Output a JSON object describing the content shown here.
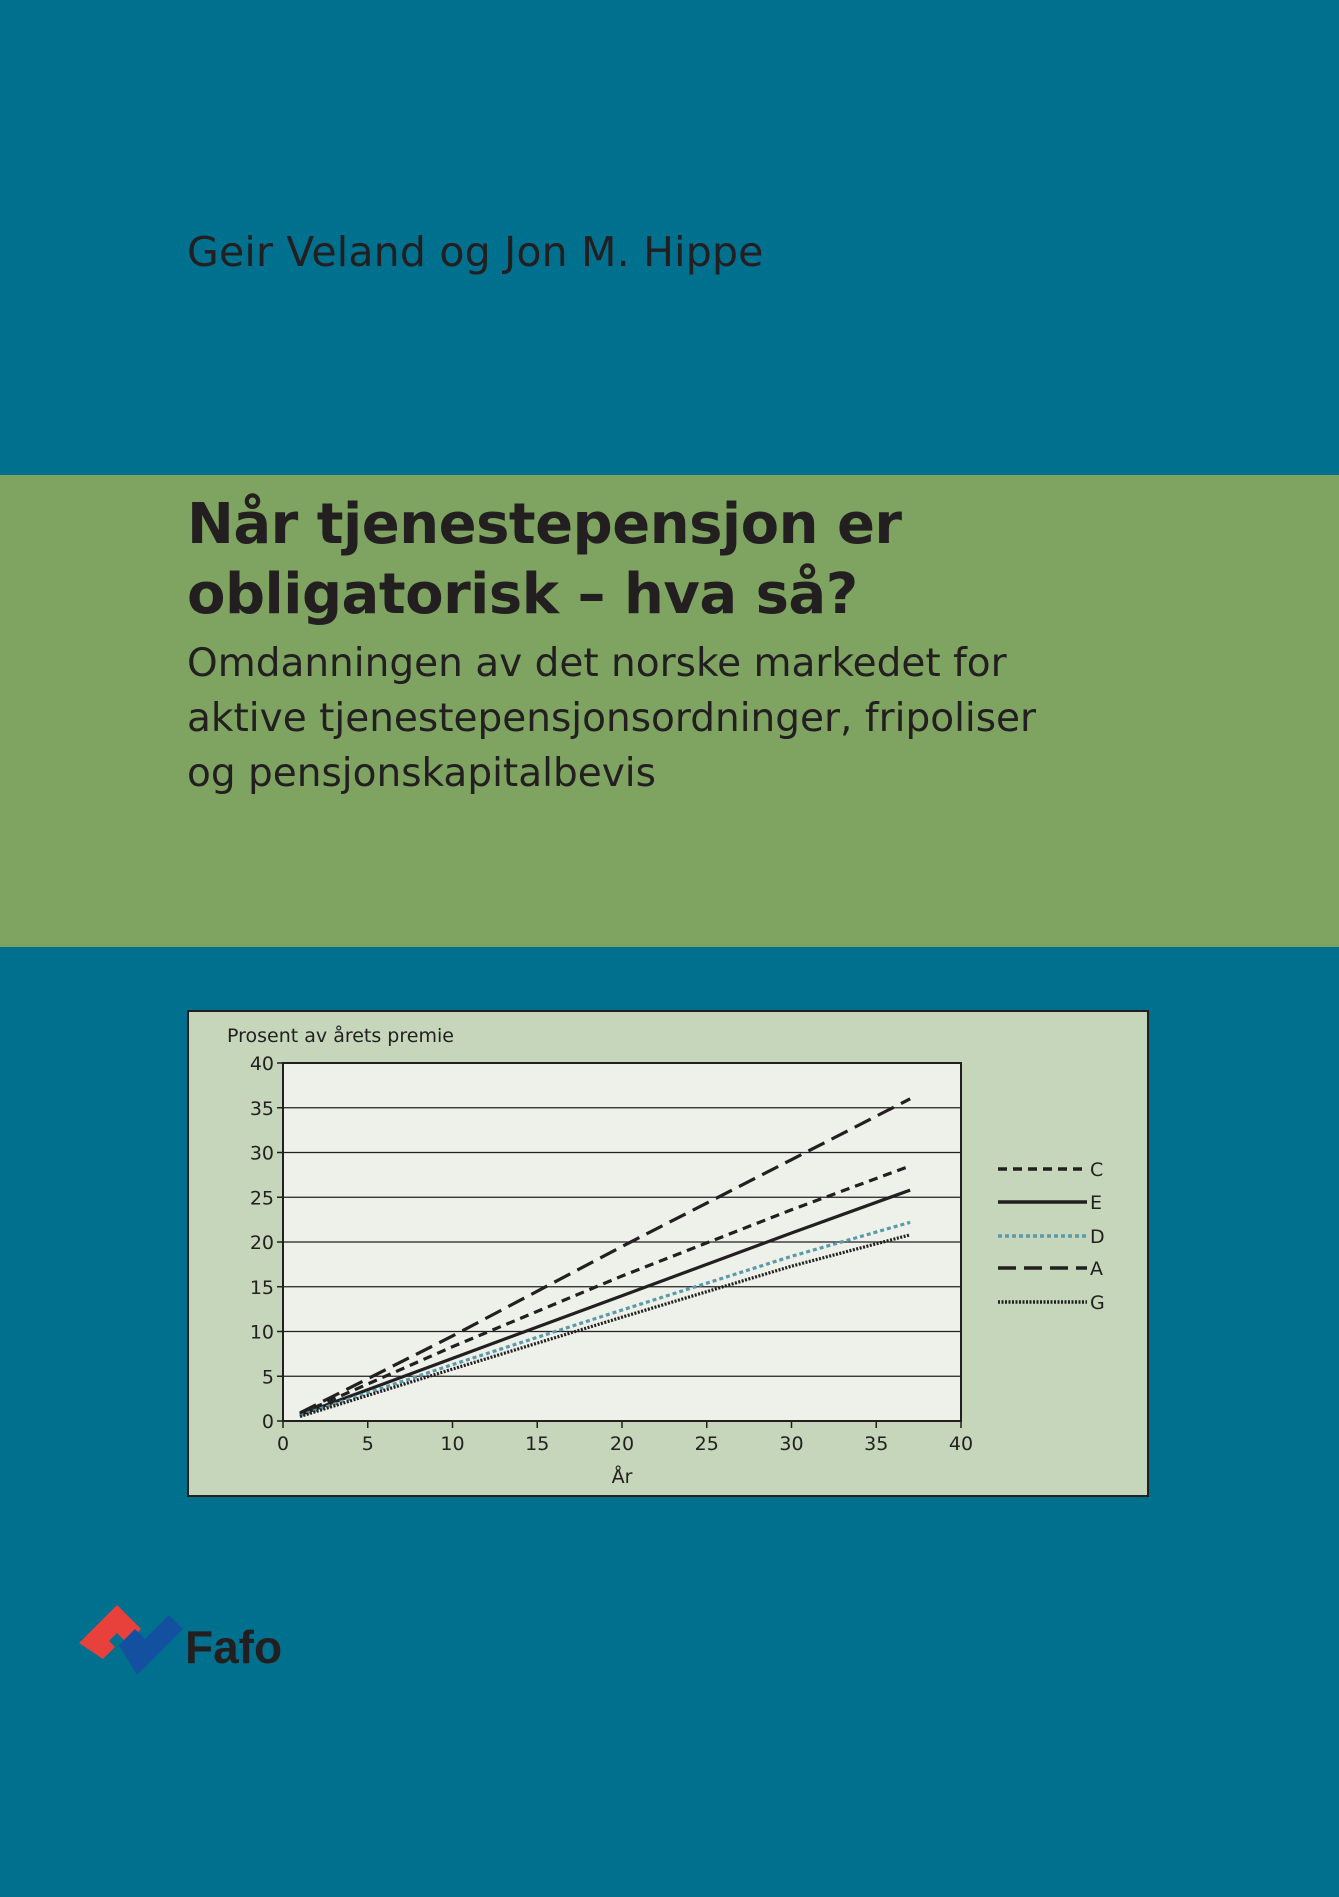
{
  "authors": "Geir Veland og Jon M. Hippe",
  "title_lines": [
    "Når tjenestepensjon er",
    "obligatorisk – hva så?"
  ],
  "subtitle_lines": [
    "Omdanningen av det norske markedet for",
    "aktive tjenestepensjonsordninger, fripoliser",
    "og pensjonskapitalbevis"
  ],
  "publisher": "Fafo",
  "colors": {
    "background": "#00708f",
    "band": "#7fa462",
    "chart_panel": "#c6d6ba",
    "plot_area": "#edf1ea",
    "logo_red": "#e8413c",
    "logo_blue": "#1450a0"
  },
  "chart_data": {
    "type": "line",
    "title": "",
    "ylabel": "Prosent av årets premie",
    "xlabel": "År",
    "xlim": [
      0,
      40
    ],
    "ylim": [
      0,
      40
    ],
    "xticks": [
      0,
      5,
      10,
      15,
      20,
      25,
      30,
      35,
      40
    ],
    "yticks": [
      0,
      5,
      10,
      15,
      20,
      25,
      30,
      35,
      40
    ],
    "grid": "horizontal",
    "legend_placement": "right",
    "series": [
      {
        "name": "C",
        "style": "short-dash",
        "color": "#231f20",
        "x": [
          1,
          10,
          20,
          30,
          37
        ],
        "y": [
          0.8,
          8.3,
          16.2,
          23.6,
          28.5
        ]
      },
      {
        "name": "E",
        "style": "solid",
        "color": "#231f20",
        "x": [
          1,
          10,
          20,
          30,
          37
        ],
        "y": [
          0.7,
          7.0,
          14.0,
          21.0,
          25.8
        ]
      },
      {
        "name": "D",
        "style": "dotted",
        "color": "#5b9aa8",
        "x": [
          1,
          10,
          20,
          30,
          37
        ],
        "y": [
          0.6,
          6.3,
          12.4,
          18.4,
          22.2
        ]
      },
      {
        "name": "A",
        "style": "long-dash",
        "color": "#231f20",
        "x": [
          1,
          10,
          20,
          30,
          37
        ],
        "y": [
          0.9,
          9.5,
          19.5,
          29.2,
          36.0
        ]
      },
      {
        "name": "G",
        "style": "dense-dot",
        "color": "#231f20",
        "x": [
          1,
          10,
          20,
          30,
          37
        ],
        "y": [
          0.5,
          5.8,
          11.6,
          17.3,
          20.8
        ]
      }
    ]
  }
}
